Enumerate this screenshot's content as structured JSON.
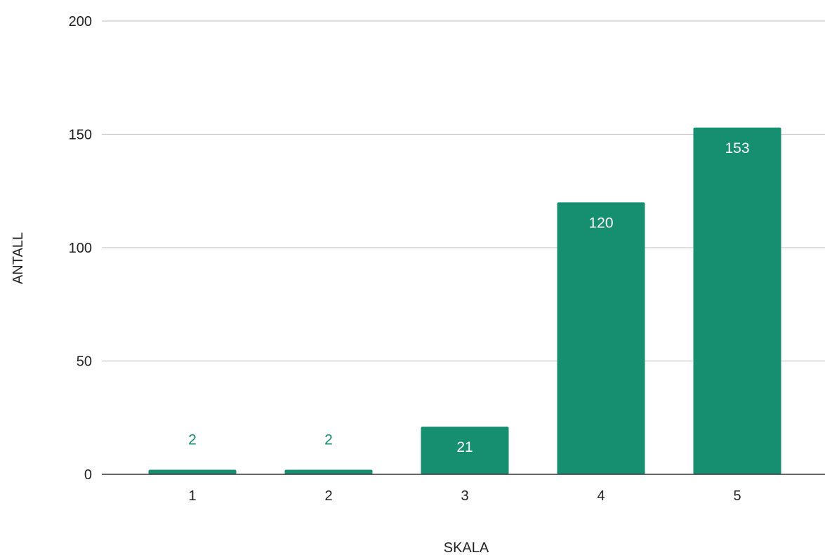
{
  "chart_data": {
    "type": "bar",
    "xlabel": "SKALA",
    "ylabel": "ANTALL",
    "categories": [
      "1",
      "2",
      "3",
      "4",
      "5"
    ],
    "values": [
      2,
      2,
      21,
      120,
      153
    ],
    "ylim": [
      0,
      200
    ],
    "yticks": [
      0,
      50,
      100,
      150,
      200
    ],
    "grid": true,
    "legend": "none",
    "bar_color": "#168f71",
    "label_inside_color": "#ffffff",
    "label_outside_color": "#168f71"
  }
}
